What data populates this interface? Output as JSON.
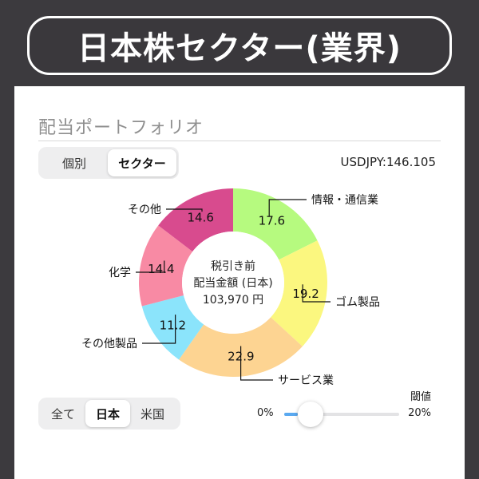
{
  "header": {
    "title": "日本株セクター(業界)"
  },
  "portfolio": {
    "section_title": "配当ポートフォリオ",
    "view_toggle": {
      "options": [
        "個別",
        "セクター"
      ],
      "selected": "セクター"
    },
    "fx_rate": "USDJPY:146.105",
    "donut_center": {
      "line1": "税引き前",
      "line2": "配当金額 (日本)",
      "line3": "103,970 円"
    },
    "market_toggle": {
      "options": [
        "全て",
        "日本",
        "米国"
      ],
      "selected": "日本"
    },
    "threshold": {
      "label": "閾値",
      "min_label": "0%",
      "max_label": "20%",
      "value_fraction": 0.12
    }
  },
  "chart_data": {
    "type": "pie",
    "title": "",
    "categories": [
      "情報・通信業",
      "ゴム製品",
      "サービス業",
      "その他製品",
      "化学",
      "その他"
    ],
    "values": [
      17.6,
      19.2,
      22.9,
      11.2,
      14.4,
      14.6
    ],
    "value_labels": [
      "17.6",
      "19.2",
      "22.9",
      "11.2",
      "14.4",
      "14.6"
    ],
    "colors": [
      "#b6fa7f",
      "#fbf77f",
      "#fdd492",
      "#8be4fb",
      "#f88aa4",
      "#d84b8e"
    ]
  }
}
